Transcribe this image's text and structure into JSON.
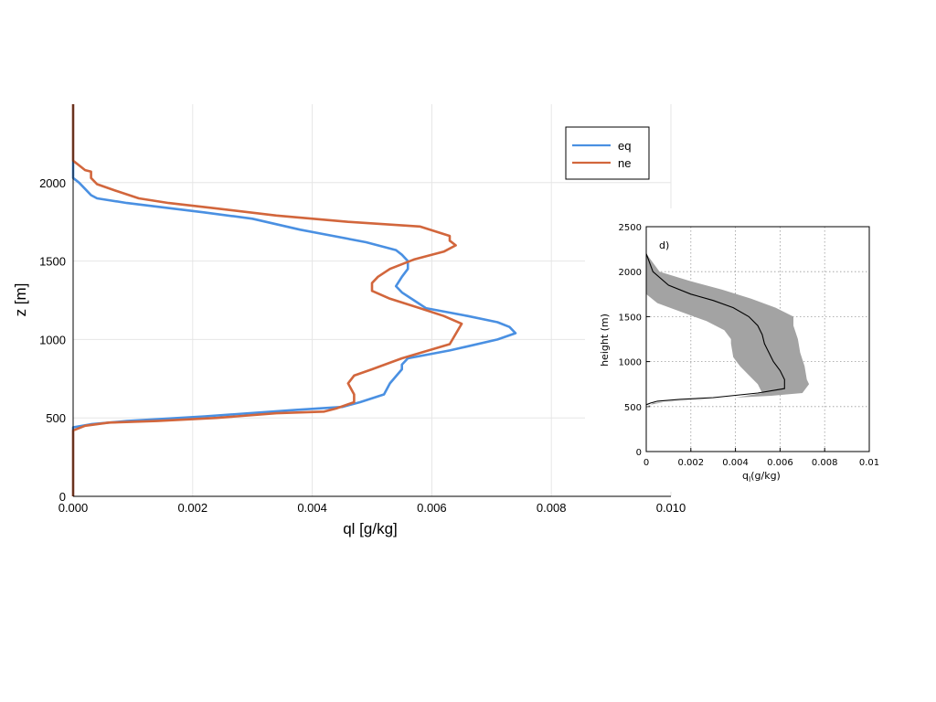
{
  "chart_data": [
    {
      "type": "line",
      "xlabel": "ql [g/kg]",
      "ylabel": "z [m]",
      "xlim": [
        0,
        0.01
      ],
      "ylim": [
        0,
        2500
      ],
      "x_ticks": [
        "0.000",
        "0.002",
        "0.004",
        "0.006",
        "0.008",
        "0.010"
      ],
      "y_ticks": [
        "0",
        "500",
        "1000",
        "1500",
        "2000"
      ],
      "grid": true,
      "legend": "top-right",
      "series": [
        {
          "name": "eq",
          "color": "#4a90e2",
          "points": [
            [
              0,
              2500
            ],
            [
              0,
              2030
            ],
            [
              0.0001,
              2000
            ],
            [
              0.0002,
              1960
            ],
            [
              0.0003,
              1920
            ],
            [
              0.0004,
              1900
            ],
            [
              0.0009,
              1870
            ],
            [
              0.0022,
              1810
            ],
            [
              0.003,
              1770
            ],
            [
              0.0038,
              1700
            ],
            [
              0.0049,
              1620
            ],
            [
              0.0054,
              1570
            ],
            [
              0.0055,
              1540
            ],
            [
              0.0056,
              1500
            ],
            [
              0.0056,
              1450
            ],
            [
              0.0055,
              1400
            ],
            [
              0.0054,
              1340
            ],
            [
              0.0055,
              1300
            ],
            [
              0.0057,
              1250
            ],
            [
              0.0059,
              1200
            ],
            [
              0.0066,
              1150
            ],
            [
              0.0071,
              1110
            ],
            [
              0.0073,
              1080
            ],
            [
              0.0074,
              1040
            ],
            [
              0.0071,
              1000
            ],
            [
              0.0063,
              930
            ],
            [
              0.0056,
              880
            ],
            [
              0.0055,
              840
            ],
            [
              0.0055,
              810
            ],
            [
              0.0053,
              720
            ],
            [
              0.0052,
              650
            ],
            [
              0.0048,
              600
            ],
            [
              0.0045,
              570
            ],
            [
              0.0037,
              550
            ],
            [
              0.0022,
              510
            ],
            [
              0.0009,
              480
            ],
            [
              0.0003,
              460
            ],
            [
              0,
              440
            ],
            [
              0,
              0
            ]
          ]
        },
        {
          "name": "ne",
          "color": "#d2663c",
          "points": [
            [
              0,
              2500
            ],
            [
              0,
              2220
            ],
            [
              0,
              2140
            ],
            [
              0.0001,
              2110
            ],
            [
              0.0002,
              2080
            ],
            [
              0.0003,
              2070
            ],
            [
              0.0003,
              2030
            ],
            [
              0.0004,
              1990
            ],
            [
              0.0007,
              1950
            ],
            [
              0.0011,
              1900
            ],
            [
              0.0016,
              1870
            ],
            [
              0.0023,
              1840
            ],
            [
              0.0034,
              1790
            ],
            [
              0.0046,
              1750
            ],
            [
              0.0058,
              1720
            ],
            [
              0.0063,
              1660
            ],
            [
              0.0063,
              1630
            ],
            [
              0.0064,
              1600
            ],
            [
              0.0062,
              1560
            ],
            [
              0.0057,
              1510
            ],
            [
              0.0053,
              1450
            ],
            [
              0.0051,
              1400
            ],
            [
              0.005,
              1360
            ],
            [
              0.005,
              1310
            ],
            [
              0.0053,
              1260
            ],
            [
              0.0058,
              1200
            ],
            [
              0.0062,
              1150
            ],
            [
              0.0065,
              1100
            ],
            [
              0.0063,
              970
            ],
            [
              0.0055,
              880
            ],
            [
              0.005,
              810
            ],
            [
              0.0047,
              770
            ],
            [
              0.0046,
              720
            ],
            [
              0.0047,
              650
            ],
            [
              0.0047,
              600
            ],
            [
              0.0044,
              560
            ],
            [
              0.0042,
              540
            ],
            [
              0.0034,
              530
            ],
            [
              0.0024,
              500
            ],
            [
              0.0014,
              480
            ],
            [
              0.0006,
              470
            ],
            [
              0.0002,
              450
            ],
            [
              0,
              420
            ],
            [
              0,
              0
            ]
          ]
        }
      ]
    },
    {
      "type": "area",
      "annotation": "d)",
      "xlabel": "q",
      "xlabel_sub": "l",
      "xlabel_rest": "(g/kg)",
      "ylabel": "height (m)",
      "xlim": [
        0,
        0.01
      ],
      "ylim": [
        0,
        2500
      ],
      "x_ticks": [
        "0",
        "0.002",
        "0.004",
        "0.006",
        "0.008",
        "0.01"
      ],
      "y_ticks": [
        "0",
        "500",
        "1000",
        "1500",
        "2000",
        "2500"
      ],
      "grid": true,
      "band_color": "#a3a3a3",
      "line_color": "#000000",
      "mean": [
        [
          0,
          2200
        ],
        [
          0.0003,
          2000
        ],
        [
          0.001,
          1850
        ],
        [
          0.002,
          1750
        ],
        [
          0.003,
          1680
        ],
        [
          0.0039,
          1600
        ],
        [
          0.0046,
          1500
        ],
        [
          0.005,
          1400
        ],
        [
          0.0052,
          1300
        ],
        [
          0.0053,
          1200
        ],
        [
          0.0055,
          1100
        ],
        [
          0.0057,
          1000
        ],
        [
          0.006,
          900
        ],
        [
          0.0062,
          800
        ],
        [
          0.0062,
          700
        ],
        [
          0.005,
          650
        ],
        [
          0.003,
          600
        ],
        [
          0.0015,
          580
        ],
        [
          0.0005,
          560
        ],
        [
          0.0002,
          540
        ],
        [
          0,
          520
        ]
      ],
      "band_upper": [
        [
          0,
          2200
        ],
        [
          0.0006,
          2000
        ],
        [
          0.0019,
          1900
        ],
        [
          0.0034,
          1800
        ],
        [
          0.0047,
          1700
        ],
        [
          0.0058,
          1600
        ],
        [
          0.0066,
          1500
        ],
        [
          0.0066,
          1400
        ],
        [
          0.0068,
          1250
        ],
        [
          0.0069,
          1100
        ],
        [
          0.0071,
          950
        ],
        [
          0.0072,
          800
        ],
        [
          0.0073,
          750
        ],
        [
          0.007,
          650
        ],
        [
          0.0056,
          620
        ],
        [
          0.004,
          600
        ],
        [
          0.002,
          570
        ],
        [
          0.0008,
          550
        ],
        [
          0.0002,
          520
        ],
        [
          0,
          500
        ]
      ],
      "band_lower": [
        [
          0,
          2100
        ],
        [
          0,
          1900
        ],
        [
          0,
          1750
        ],
        [
          0.0005,
          1650
        ],
        [
          0.0016,
          1550
        ],
        [
          0.0027,
          1450
        ],
        [
          0.0035,
          1350
        ],
        [
          0.0038,
          1250
        ],
        [
          0.0038,
          1200
        ],
        [
          0.0039,
          1050
        ],
        [
          0.0042,
          950
        ],
        [
          0.0046,
          850
        ],
        [
          0.005,
          750
        ],
        [
          0.0052,
          650
        ],
        [
          0.004,
          600
        ],
        [
          0.0025,
          580
        ],
        [
          0.0012,
          560
        ],
        [
          0.0003,
          540
        ],
        [
          0,
          480
        ]
      ]
    }
  ]
}
